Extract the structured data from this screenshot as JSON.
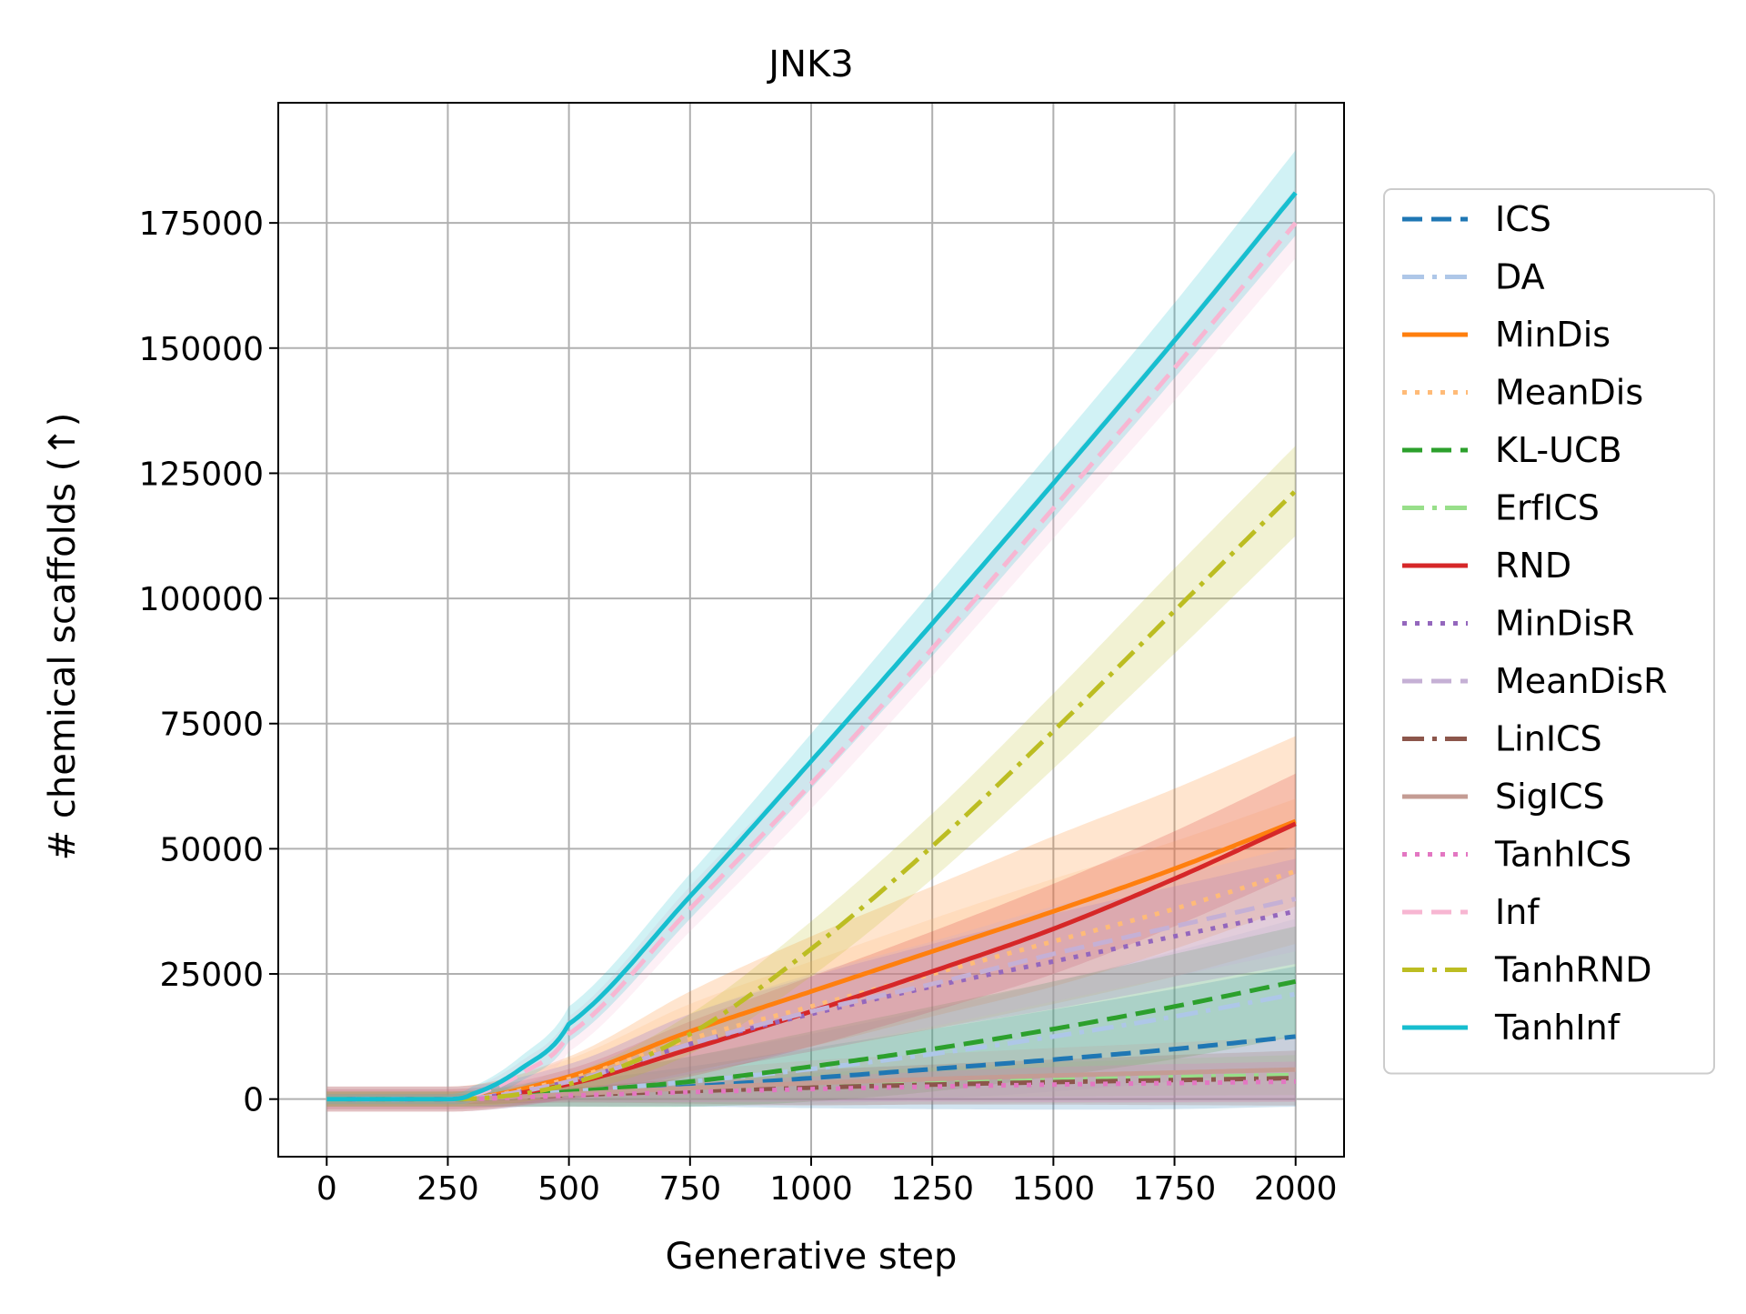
{
  "chart_data": {
    "type": "line",
    "title": "JNK3",
    "xlabel": "Generative step",
    "ylabel": "# chemical scaffolds (↑)",
    "xlim": [
      -100,
      2100
    ],
    "ylim": [
      -11500,
      199000
    ],
    "xticks": [
      0,
      250,
      500,
      750,
      1000,
      1250,
      1500,
      1750,
      2000
    ],
    "yticks": [
      0,
      25000,
      50000,
      75000,
      100000,
      125000,
      150000,
      175000
    ],
    "grid": true,
    "legend_position": "right, outside plot",
    "series": [
      {
        "name": "ICS",
        "color": "#1f77b4",
        "dash": "dashed",
        "x": [
          0,
          250,
          500,
          750,
          1000,
          1250,
          1500,
          1750,
          2000
        ],
        "y": [
          0,
          0,
          1000,
          2500,
          4200,
          6000,
          7900,
          10000,
          12500
        ],
        "band": [
          1500,
          1500,
          2500,
          4000,
          6000,
          8000,
          10000,
          12000,
          14000
        ]
      },
      {
        "name": "DA",
        "color": "#aec7e8",
        "dash": "dashdot",
        "x": [
          0,
          250,
          500,
          750,
          1000,
          1250,
          1500,
          1750,
          2000
        ],
        "y": [
          0,
          0,
          1500,
          3500,
          6000,
          9000,
          12500,
          16500,
          21000
        ],
        "band": [
          2000,
          2000,
          3000,
          5000,
          7000,
          9000,
          11000,
          13000,
          15000
        ]
      },
      {
        "name": "MinDis",
        "color": "#ff7f0e",
        "dash": "solid",
        "x": [
          0,
          250,
          500,
          750,
          1000,
          1250,
          1500,
          1750,
          2000
        ],
        "y": [
          0,
          0,
          4500,
          13500,
          21500,
          29500,
          37500,
          46000,
          55500
        ],
        "band": [
          2500,
          2500,
          4000,
          8000,
          11000,
          13000,
          15000,
          16000,
          17000
        ]
      },
      {
        "name": "MeanDis",
        "color": "#ffbb78",
        "dash": "dotted",
        "x": [
          0,
          250,
          500,
          750,
          1000,
          1250,
          1500,
          1750,
          2000
        ],
        "y": [
          0,
          0,
          4000,
          12000,
          18500,
          25000,
          31500,
          38000,
          45500
        ],
        "band": [
          2500,
          2500,
          4000,
          7000,
          9000,
          11000,
          12500,
          13500,
          14500
        ]
      },
      {
        "name": "KL-UCB",
        "color": "#2ca02c",
        "dash": "dashed",
        "x": [
          0,
          250,
          500,
          750,
          1000,
          1250,
          1500,
          1750,
          2000
        ],
        "y": [
          0,
          0,
          1500,
          3500,
          6500,
          10000,
          14000,
          18500,
          23500
        ],
        "band": [
          1500,
          1500,
          3000,
          5000,
          7000,
          8500,
          9500,
          10500,
          11000
        ]
      },
      {
        "name": "ErfICS",
        "color": "#98df8a",
        "dash": "dashdot",
        "x": [
          0,
          250,
          500,
          750,
          1000,
          1250,
          1500,
          1750,
          2000
        ],
        "y": [
          0,
          0,
          800,
          1800,
          2600,
          3300,
          3900,
          4400,
          4800
        ],
        "band": [
          800,
          800,
          1200,
          2000,
          2600,
          3000,
          3400,
          3700,
          4000
        ]
      },
      {
        "name": "RND",
        "color": "#d62728",
        "dash": "solid",
        "x": [
          0,
          250,
          500,
          750,
          1000,
          1250,
          1500,
          1750,
          2000
        ],
        "y": [
          0,
          0,
          3000,
          10000,
          17500,
          25500,
          34000,
          44000,
          55000
        ],
        "band": [
          2000,
          2000,
          3000,
          5500,
          7000,
          8000,
          9000,
          9500,
          10000
        ]
      },
      {
        "name": "MinDisR",
        "color": "#9467bd",
        "dash": "dotted",
        "x": [
          0,
          250,
          500,
          750,
          1000,
          1250,
          1500,
          1750,
          2000
        ],
        "y": [
          0,
          0,
          3500,
          11000,
          17000,
          22500,
          27500,
          32500,
          37500
        ],
        "band": [
          2500,
          2500,
          3500,
          6000,
          7500,
          8500,
          9500,
          10000,
          10500
        ]
      },
      {
        "name": "MeanDisR",
        "color": "#c5b0d5",
        "dash": "dashed",
        "x": [
          0,
          250,
          500,
          750,
          1000,
          1250,
          1500,
          1750,
          2000
        ],
        "y": [
          0,
          0,
          3500,
          11000,
          17500,
          23000,
          29000,
          34500,
          40000
        ],
        "band": [
          2500,
          2500,
          3500,
          6000,
          7500,
          8500,
          9500,
          10000,
          10500
        ]
      },
      {
        "name": "LinICS",
        "color": "#8c564b",
        "dash": "dashdot",
        "x": [
          0,
          250,
          500,
          750,
          1000,
          1250,
          1500,
          1750,
          2000
        ],
        "y": [
          0,
          0,
          800,
          1600,
          2300,
          2900,
          3400,
          3800,
          4200
        ],
        "band": [
          1000,
          1000,
          1500,
          2500,
          3500,
          4000,
          4500,
          5000,
          5500
        ]
      },
      {
        "name": "SigICS",
        "color": "#c49c94",
        "dash": "solid",
        "x": [
          0,
          250,
          500,
          750,
          1000,
          1250,
          1500,
          1750,
          2000
        ],
        "y": [
          0,
          0,
          1000,
          2200,
          3200,
          4000,
          4700,
          5300,
          5900
        ],
        "band": [
          1500,
          1500,
          2500,
          3500,
          4500,
          5000,
          5500,
          6000,
          6500
        ]
      },
      {
        "name": "TanhICS",
        "color": "#e377c2",
        "dash": "dotted",
        "x": [
          0,
          250,
          500,
          750,
          1000,
          1250,
          1500,
          1750,
          2000
        ],
        "y": [
          0,
          0,
          700,
          1400,
          2000,
          2500,
          2900,
          3200,
          3500
        ],
        "band": [
          800,
          800,
          1200,
          2000,
          2500,
          3000,
          3500,
          3800,
          4000
        ]
      },
      {
        "name": "Inf",
        "color": "#f7b6d2",
        "dash": "dashed",
        "x": [
          0,
          250,
          300,
          400,
          500,
          750,
          1000,
          1250,
          1500,
          1750,
          2000
        ],
        "y": [
          0,
          0,
          800,
          5000,
          13000,
          38000,
          63000,
          90000,
          118000,
          146000,
          175000
        ],
        "band": [
          1000,
          1000,
          1500,
          2500,
          3500,
          4500,
          5000,
          5500,
          6000,
          6500,
          7000
        ]
      },
      {
        "name": "TanhRND",
        "color": "#bcbd22",
        "dash": "dashdot",
        "x": [
          0,
          250,
          500,
          750,
          1000,
          1250,
          1500,
          1750,
          2000
        ],
        "y": [
          0,
          0,
          3000,
          13000,
          30000,
          50500,
          73500,
          97500,
          121500
        ],
        "band": [
          1500,
          1500,
          2000,
          4000,
          5500,
          6500,
          7500,
          8500,
          9000
        ]
      },
      {
        "name": "TanhInf",
        "color": "#17becf",
        "dash": "solid",
        "x": [
          0,
          250,
          300,
          400,
          500,
          750,
          1000,
          1250,
          1500,
          1750,
          2000
        ],
        "y": [
          0,
          0,
          1000,
          6000,
          15000,
          40500,
          67500,
          95000,
          123000,
          151500,
          181000
        ],
        "band": [
          1000,
          1000,
          1500,
          2500,
          3500,
          4500,
          5500,
          6500,
          7000,
          7500,
          8500
        ]
      }
    ]
  }
}
